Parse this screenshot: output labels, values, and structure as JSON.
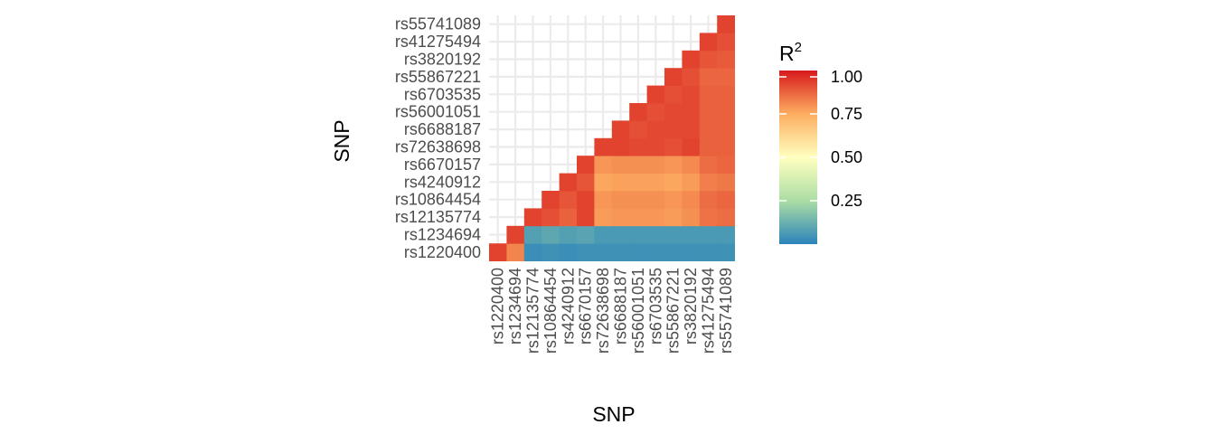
{
  "chart_data": {
    "type": "heatmap",
    "xlabel": "SNP",
    "ylabel": "SNP",
    "snps": [
      "rs1220400",
      "rs1234694",
      "rs12135774",
      "rs10864454",
      "rs4240912",
      "rs6670157",
      "rs72638698",
      "rs6688187",
      "rs56001051",
      "rs6703535",
      "rs55867221",
      "rs3820192",
      "rs41275494",
      "rs55741089"
    ],
    "legend": {
      "title": "R",
      "title_superscript": "2",
      "ticks": [
        0.25,
        0.5,
        0.75,
        1.0
      ],
      "tick_labels": [
        "0.25",
        "0.50",
        "0.75",
        "1.00"
      ],
      "range": [
        0.0,
        1.0
      ],
      "palette": [
        "#2b83ba",
        "#abdda4",
        "#ffffbf",
        "#fdae61",
        "#d7191c"
      ],
      "placement": "right"
    },
    "grid": true,
    "values": [
      [
        0.93,
        null,
        null,
        null,
        null,
        null,
        null,
        null,
        null,
        null,
        null,
        null,
        null,
        null
      ],
      [
        0.82,
        0.93,
        null,
        null,
        null,
        null,
        null,
        null,
        null,
        null,
        null,
        null,
        null,
        null
      ],
      [
        0.03,
        0.08,
        0.93,
        null,
        null,
        null,
        null,
        null,
        null,
        null,
        null,
        null,
        null,
        null
      ],
      [
        0.04,
        0.1,
        0.91,
        0.93,
        null,
        null,
        null,
        null,
        null,
        null,
        null,
        null,
        null,
        null
      ],
      [
        0.03,
        0.08,
        0.88,
        0.9,
        0.93,
        null,
        null,
        null,
        null,
        null,
        null,
        null,
        null,
        null
      ],
      [
        0.04,
        0.09,
        0.93,
        0.93,
        0.9,
        0.93,
        null,
        null,
        null,
        null,
        null,
        null,
        null,
        null
      ],
      [
        0.04,
        0.06,
        0.78,
        0.79,
        0.76,
        0.79,
        0.93,
        null,
        null,
        null,
        null,
        null,
        null,
        null
      ],
      [
        0.04,
        0.06,
        0.79,
        0.8,
        0.77,
        0.8,
        0.93,
        0.93,
        null,
        null,
        null,
        null,
        null,
        null
      ],
      [
        0.04,
        0.06,
        0.79,
        0.8,
        0.77,
        0.8,
        0.92,
        0.91,
        0.93,
        null,
        null,
        null,
        null,
        null
      ],
      [
        0.04,
        0.06,
        0.79,
        0.8,
        0.77,
        0.8,
        0.92,
        0.92,
        0.91,
        0.93,
        null,
        null,
        null,
        null
      ],
      [
        0.04,
        0.06,
        0.78,
        0.79,
        0.76,
        0.79,
        0.91,
        0.92,
        0.92,
        0.91,
        0.93,
        null,
        null,
        null
      ],
      [
        0.04,
        0.06,
        0.8,
        0.81,
        0.78,
        0.81,
        0.93,
        0.92,
        0.92,
        0.92,
        0.91,
        0.93,
        null,
        null
      ],
      [
        0.04,
        0.06,
        0.85,
        0.86,
        0.83,
        0.86,
        0.88,
        0.88,
        0.88,
        0.88,
        0.87,
        0.9,
        0.93,
        null
      ],
      [
        0.04,
        0.06,
        0.86,
        0.87,
        0.84,
        0.87,
        0.88,
        0.88,
        0.88,
        0.88,
        0.87,
        0.89,
        0.91,
        0.93
      ]
    ]
  }
}
